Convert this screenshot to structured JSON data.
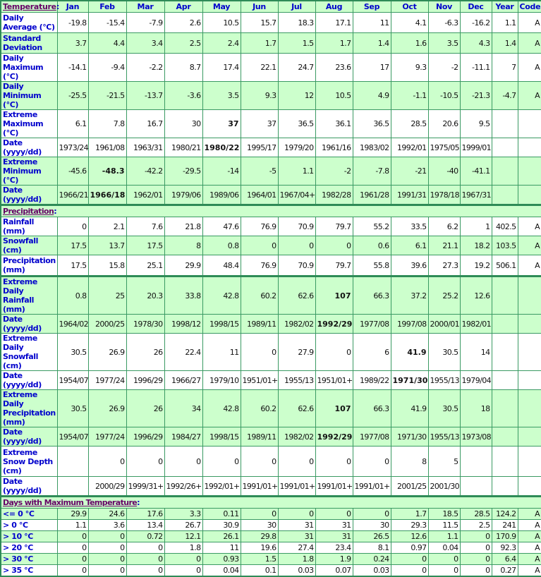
{
  "colors": {
    "green_row": "#ccffcc",
    "label_blue": "#0000cc",
    "section_purple": "#660066",
    "border": "#3a9a63"
  },
  "header": {
    "section": "Temperature",
    "columns": [
      "Jan",
      "Feb",
      "Mar",
      "Apr",
      "May",
      "Jun",
      "Jul",
      "Aug",
      "Sep",
      "Oct",
      "Nov",
      "Dec",
      "Year",
      "Code"
    ]
  },
  "sections": [
    {
      "title": "Temperature",
      "rows": [
        {
          "label": "Daily Average (°C)",
          "bg": "w",
          "values": [
            "-19.8",
            "-15.4",
            "-7.9",
            "2.6",
            "10.5",
            "15.7",
            "18.3",
            "17.1",
            "11",
            "4.1",
            "-6.3",
            "-16.2",
            "1.1",
            "A"
          ]
        },
        {
          "label": "Standard Deviation",
          "bg": "g",
          "values": [
            "3.7",
            "4.4",
            "3.4",
            "2.5",
            "2.4",
            "1.7",
            "1.5",
            "1.7",
            "1.4",
            "1.6",
            "3.5",
            "4.3",
            "1.4",
            "A"
          ]
        },
        {
          "label": "Daily Maximum (°C)",
          "bg": "w",
          "values": [
            "-14.1",
            "-9.4",
            "-2.2",
            "8.7",
            "17.4",
            "22.1",
            "24.7",
            "23.6",
            "17",
            "9.3",
            "-2",
            "-11.1",
            "7",
            "A"
          ]
        },
        {
          "label": "Daily Minimum (°C)",
          "bg": "g",
          "values": [
            "-25.5",
            "-21.5",
            "-13.7",
            "-3.6",
            "3.5",
            "9.3",
            "12",
            "10.5",
            "4.9",
            "-1.1",
            "-10.5",
            "-21.3",
            "-4.7",
            "A"
          ]
        },
        {
          "label": "Extreme Maximum (°C)",
          "bg": "w",
          "bold": 4,
          "values": [
            "6.1",
            "7.8",
            "16.7",
            "30",
            "37",
            "37",
            "36.5",
            "36.1",
            "36.5",
            "28.5",
            "20.6",
            "9.5",
            "",
            ""
          ]
        },
        {
          "label": "Date (yyyy/dd)",
          "bg": "w",
          "bold": 4,
          "values": [
            "1973/24",
            "1961/08",
            "1963/31",
            "1980/21",
            "1980/22",
            "1995/17",
            "1979/20",
            "1961/16",
            "1983/02",
            "1992/01",
            "1975/05",
            "1999/01",
            "",
            ""
          ]
        },
        {
          "label": "Extreme Minimum (°C)",
          "bg": "g",
          "bold": 1,
          "values": [
            "-45.6",
            "-48.3",
            "-42.2",
            "-29.5",
            "-14",
            "-5",
            "1.1",
            "-2",
            "-7.8",
            "-21",
            "-40",
            "-41.1",
            "",
            ""
          ]
        },
        {
          "label": "Date (yyyy/dd)",
          "bg": "g",
          "bold": 1,
          "values": [
            "1966/21",
            "1966/18",
            "1962/01",
            "1979/06",
            "1989/06",
            "1964/01",
            "1967/04+",
            "1982/28",
            "1961/28",
            "1991/31",
            "1978/18",
            "1967/31",
            "",
            ""
          ]
        }
      ]
    },
    {
      "title": "Precipitation",
      "rows": [
        {
          "label": "Rainfall (mm)",
          "bg": "w",
          "values": [
            "0",
            "2.1",
            "7.6",
            "21.8",
            "47.6",
            "76.9",
            "70.9",
            "79.7",
            "55.2",
            "33.5",
            "6.2",
            "1",
            "402.5",
            "A"
          ]
        },
        {
          "label": "Snowfall (cm)",
          "bg": "g",
          "values": [
            "17.5",
            "13.7",
            "17.5",
            "8",
            "0.8",
            "0",
            "0",
            "0",
            "0.6",
            "6.1",
            "21.1",
            "18.2",
            "103.5",
            "A"
          ]
        },
        {
          "label": "Precipitation (mm)",
          "bg": "w",
          "values": [
            "17.5",
            "15.8",
            "25.1",
            "29.9",
            "48.4",
            "76.9",
            "70.9",
            "79.7",
            "55.8",
            "39.6",
            "27.3",
            "19.2",
            "506.1",
            "A"
          ]
        },
        {
          "label": "Extreme Daily Rainfall (mm)",
          "bg": "g",
          "thick": true,
          "bold": 7,
          "values": [
            "0.8",
            "25",
            "20.3",
            "33.8",
            "42.8",
            "60.2",
            "62.6",
            "107",
            "66.3",
            "37.2",
            "25.2",
            "12.6",
            "",
            ""
          ]
        },
        {
          "label": "Date (yyyy/dd)",
          "bg": "g",
          "bold": 7,
          "values": [
            "1964/02",
            "2000/25",
            "1978/30",
            "1998/12",
            "1998/15",
            "1989/11",
            "1982/02",
            "1992/29",
            "1977/08",
            "1997/08",
            "2000/01",
            "1982/01",
            "",
            ""
          ]
        },
        {
          "label": "Extreme Daily Snowfall (cm)",
          "bg": "w",
          "bold": 9,
          "values": [
            "30.5",
            "26.9",
            "26",
            "22.4",
            "11",
            "0",
            "27.9",
            "0",
            "6",
            "41.9",
            "30.5",
            "14",
            "",
            ""
          ]
        },
        {
          "label": "Date (yyyy/dd)",
          "bg": "w",
          "bold": 9,
          "values": [
            "1954/07",
            "1977/24",
            "1996/29",
            "1966/27",
            "1979/10",
            "1951/01+",
            "1955/13",
            "1951/01+",
            "1989/22",
            "1971/30",
            "1955/13",
            "1979/04",
            "",
            ""
          ]
        },
        {
          "label": "Extreme Daily Precipitation (mm)",
          "bg": "g",
          "bold": 7,
          "values": [
            "30.5",
            "26.9",
            "26",
            "34",
            "42.8",
            "60.2",
            "62.6",
            "107",
            "66.3",
            "41.9",
            "30.5",
            "18",
            "",
            ""
          ]
        },
        {
          "label": "Date (yyyy/dd)",
          "bg": "g",
          "bold": 7,
          "values": [
            "1954/07",
            "1977/24",
            "1996/29",
            "1984/27",
            "1998/15",
            "1989/11",
            "1982/02",
            "1992/29",
            "1977/08",
            "1971/30",
            "1955/13",
            "1973/08",
            "",
            ""
          ]
        },
        {
          "label": "Extreme Snow Depth (cm)",
          "bg": "w",
          "values": [
            "",
            "0",
            "0",
            "0",
            "0",
            "0",
            "0",
            "0",
            "0",
            "8",
            "5",
            "",
            "",
            ""
          ]
        },
        {
          "label": "Date (yyyy/dd)",
          "bg": "w",
          "values": [
            "",
            "2000/29",
            "1999/31+",
            "1992/26+",
            "1992/01+",
            "1991/01+",
            "1991/01+",
            "1991/01+",
            "1991/01+",
            "2001/25",
            "2001/30",
            "",
            "",
            ""
          ]
        }
      ]
    },
    {
      "title": "Days with Maximum Temperature",
      "rows": [
        {
          "label": "<= 0 °C",
          "bg": "g",
          "values": [
            "29.9",
            "24.6",
            "17.6",
            "3.3",
            "0.11",
            "0",
            "0",
            "0",
            "0",
            "1.7",
            "18.5",
            "28.5",
            "124.2",
            "A"
          ]
        },
        {
          "label": "> 0 °C",
          "bg": "w",
          "values": [
            "1.1",
            "3.6",
            "13.4",
            "26.7",
            "30.9",
            "30",
            "31",
            "31",
            "30",
            "29.3",
            "11.5",
            "2.5",
            "241",
            "A"
          ]
        },
        {
          "label": "> 10 °C",
          "bg": "g",
          "values": [
            "0",
            "0",
            "0.72",
            "12.1",
            "26.1",
            "29.8",
            "31",
            "31",
            "26.5",
            "12.6",
            "1.1",
            "0",
            "170.9",
            "A"
          ]
        },
        {
          "label": "> 20 °C",
          "bg": "w",
          "values": [
            "0",
            "0",
            "0",
            "1.8",
            "11",
            "19.6",
            "27.4",
            "23.4",
            "8.1",
            "0.97",
            "0.04",
            "0",
            "92.3",
            "A"
          ]
        },
        {
          "label": "> 30 °C",
          "bg": "g",
          "values": [
            "0",
            "0",
            "0",
            "0",
            "0.93",
            "1.5",
            "1.8",
            "1.9",
            "0.24",
            "0",
            "0",
            "0",
            "6.4",
            "A"
          ]
        },
        {
          "label": "> 35 °C",
          "bg": "w",
          "values": [
            "0",
            "0",
            "0",
            "0",
            "0.04",
            "0.1",
            "0.03",
            "0.07",
            "0.03",
            "0",
            "0",
            "0",
            "0.27",
            "A"
          ]
        }
      ]
    }
  ]
}
